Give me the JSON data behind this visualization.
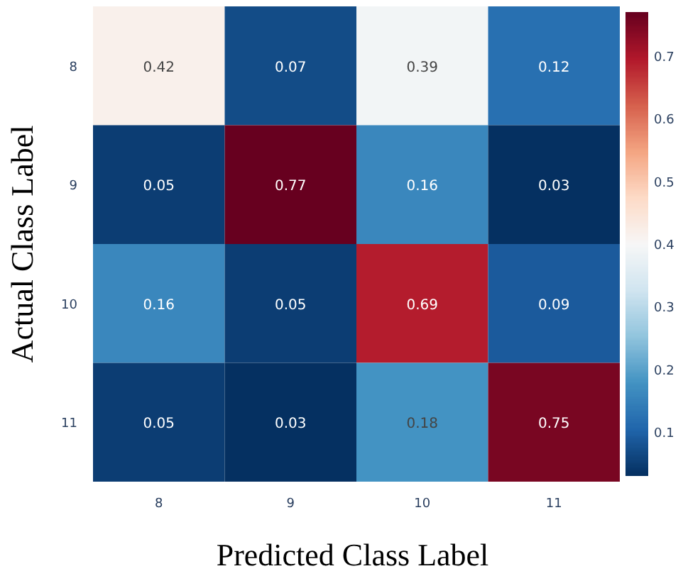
{
  "chart_data": {
    "type": "heatmap",
    "xlabel": "Predicted  Class Label",
    "ylabel": "Actual Class Label",
    "categories": [
      "8",
      "9",
      "10",
      "11"
    ],
    "y_categories": [
      "8",
      "9",
      "10",
      "11"
    ],
    "cells": [
      [
        0.42,
        0.07,
        0.39,
        0.12
      ],
      [
        0.05,
        0.77,
        0.16,
        0.03
      ],
      [
        0.16,
        0.05,
        0.69,
        0.09
      ],
      [
        0.05,
        0.03,
        0.18,
        0.75
      ]
    ],
    "data_labels": true,
    "clim": [
      0.03,
      0.77
    ],
    "cticks": [
      0.1,
      0.2,
      0.3,
      0.4,
      0.5,
      0.6,
      0.7
    ]
  }
}
